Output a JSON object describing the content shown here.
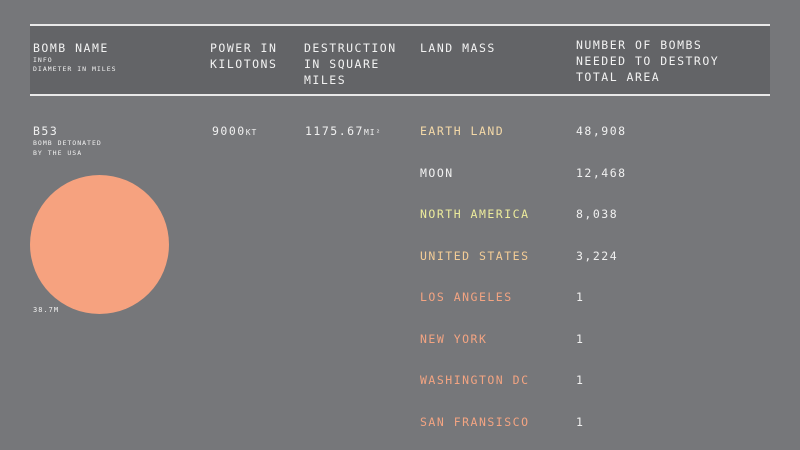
{
  "header": {
    "col1": {
      "title": "BOMB NAME",
      "sub1": "INFO",
      "sub2": "DIAMETER IN MILES"
    },
    "col2": {
      "line1": "POWER IN",
      "line2": "KILOTONS"
    },
    "col3": {
      "line1": "DESTRUCTION",
      "line2": "IN SQUARE",
      "line3": "MILES"
    },
    "col4": {
      "line1": "LAND MASS"
    },
    "col5": {
      "line1": "NUMBER OF BOMBS",
      "line2": "NEEDED TO DESTROY",
      "line3": "TOTAL AREA"
    }
  },
  "bomb": {
    "name": "B53",
    "desc1": "BOMB DETONATED",
    "desc2": "BY THE USA",
    "power_value": "9000",
    "power_unit": "KT",
    "destruction_value": "1175.67",
    "destruction_unit": "MI²",
    "diameter": "38.7M",
    "circle_color": "#f6a27f"
  },
  "land_masses": [
    {
      "name": "EARTH LAND",
      "count": "48,908",
      "color": "#f4d9a8"
    },
    {
      "name": "MOON",
      "count": "12,468",
      "color": "#f2f2f2"
    },
    {
      "name": "NORTH AMERICA",
      "count": "8,038",
      "color": "#eceb9c"
    },
    {
      "name": "UNITED STATES",
      "count": "3,224",
      "color": "#f3cc96"
    },
    {
      "name": "LOS ANGELES",
      "count": "1",
      "color": "#f3a482"
    },
    {
      "name": "NEW YORK",
      "count": "1",
      "color": "#f3a482"
    },
    {
      "name": "WASHINGTON DC",
      "count": "1",
      "color": "#f3a482"
    },
    {
      "name": "SAN FRANSISCO",
      "count": "1",
      "color": "#f3a482"
    }
  ]
}
